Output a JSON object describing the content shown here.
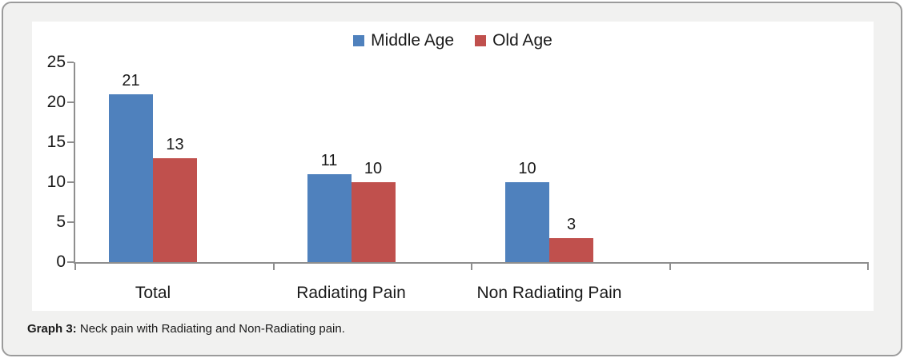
{
  "card": {
    "caption_label": "Graph 3:",
    "caption_text": " Neck pain with Radiating and Non-Radiating pain."
  },
  "chart_data": {
    "type": "bar",
    "categories": [
      "Total",
      "Radiating Pain",
      "Non Radiating Pain"
    ],
    "series": [
      {
        "name": "Middle Age",
        "color": "#4F81BD",
        "values": [
          21,
          11,
          10
        ]
      },
      {
        "name": "Old Age",
        "color": "#C0504D",
        "values": [
          13,
          10,
          3
        ]
      }
    ],
    "title": "",
    "xlabel": "",
    "ylabel": "",
    "ylim": [
      0,
      25
    ],
    "yticks": [
      0,
      5,
      10,
      15,
      20,
      25
    ],
    "x_intervals": 4,
    "legend_position": "top-center",
    "grid": false,
    "data_labels": true,
    "colors": {
      "axis": "#8e8e8e",
      "text": "#1a1a1a",
      "card_background": "#f1f1f0",
      "card_border": "#9b9b9b",
      "plot_background": "#ffffff"
    }
  }
}
